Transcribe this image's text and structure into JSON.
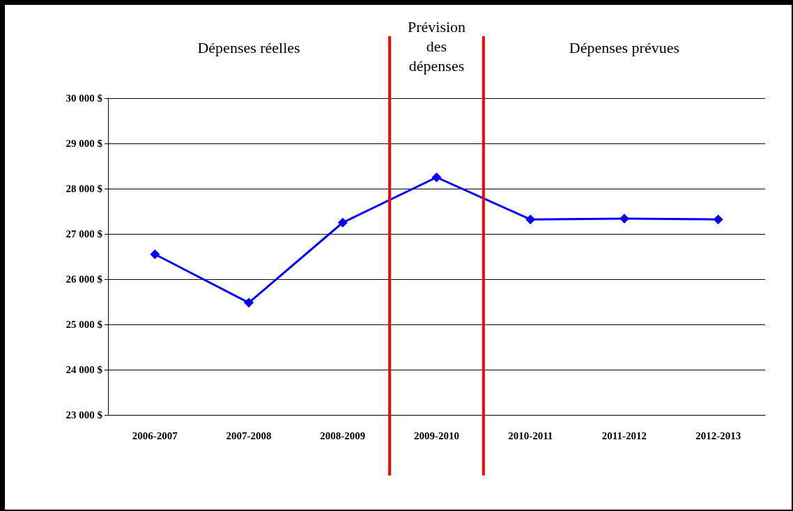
{
  "chart_data": {
    "type": "line",
    "categories": [
      "2006-2007",
      "2007-2008",
      "2008-2009",
      "2009-2010",
      "2010-2011",
      "2011-2012",
      "2012-2013"
    ],
    "series": [
      {
        "color": "#0000ff",
        "values": [
          26550,
          25480,
          27250,
          28250,
          27320,
          27340,
          27320
        ]
      }
    ],
    "ylim": [
      23000,
      30000
    ],
    "yticks": [
      {
        "value": 23000,
        "label": "23 000 $"
      },
      {
        "value": 24000,
        "label": "24 000 $"
      },
      {
        "value": 25000,
        "label": "25 000 $"
      },
      {
        "value": 26000,
        "label": "26 000 $"
      },
      {
        "value": 27000,
        "label": "27 000 $"
      },
      {
        "value": 28000,
        "label": "28 000 $"
      },
      {
        "value": 29000,
        "label": "29 000 $"
      },
      {
        "value": 30000,
        "label": "30 000 $"
      }
    ],
    "grid": "y",
    "marker": "diamond",
    "line_style": "solid",
    "annotations": [
      "Dépenses réelles",
      "Prévision\ndes\ndépenses",
      "Dépenses prévues"
    ]
  }
}
